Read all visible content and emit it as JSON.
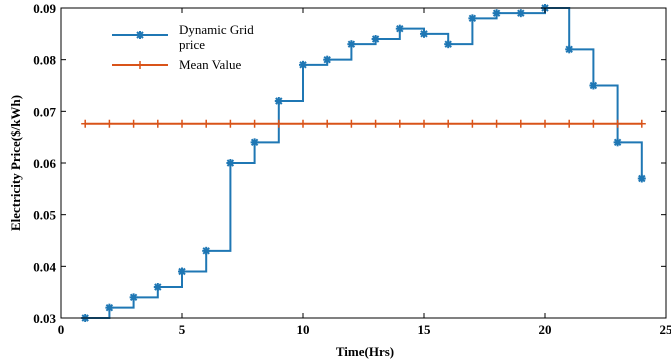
{
  "chart_data": {
    "type": "line",
    "title": "",
    "xlabel": "Time(Hrs)",
    "ylabel": "Electricity Price($/kWh)",
    "xlim": [
      0,
      25
    ],
    "ylim": [
      0.03,
      0.09
    ],
    "xticks": [
      0,
      5,
      10,
      15,
      20,
      25
    ],
    "xtick_labels": [
      "0",
      "5",
      "10",
      "15",
      "20",
      "25"
    ],
    "yticks": [
      0.03,
      0.04,
      0.05,
      0.06,
      0.07,
      0.08,
      0.09
    ],
    "ytick_labels": [
      "0.03",
      "0.04",
      "0.05",
      "0.06",
      "0.07",
      "0.08",
      "0.09"
    ],
    "grid": false,
    "legend_position": "top-left",
    "series": [
      {
        "name": "Dynamic Grid price",
        "legend_lines": [
          "Dynamic Grid",
          "price"
        ],
        "style": "step",
        "marker": "asterisk",
        "color": "#1f77b4",
        "x": [
          1,
          2,
          3,
          4,
          5,
          6,
          7,
          8,
          9,
          10,
          11,
          12,
          13,
          14,
          15,
          16,
          17,
          18,
          19,
          20,
          21,
          22,
          23,
          24
        ],
        "y": [
          0.03,
          0.032,
          0.034,
          0.036,
          0.039,
          0.043,
          0.06,
          0.064,
          0.072,
          0.079,
          0.08,
          0.083,
          0.084,
          0.086,
          0.085,
          0.083,
          0.088,
          0.089,
          0.089,
          0.09,
          0.082,
          0.075,
          0.064,
          0.057
        ]
      },
      {
        "name": "Mean Value",
        "legend_lines": [
          "Mean Value"
        ],
        "style": "line",
        "marker": "plus",
        "color": "#d95319",
        "x": [
          1,
          2,
          3,
          4,
          5,
          6,
          7,
          8,
          9,
          10,
          11,
          12,
          13,
          14,
          15,
          16,
          17,
          18,
          19,
          20,
          21,
          22,
          23,
          24
        ],
        "y": [
          0.0676,
          0.0676,
          0.0676,
          0.0676,
          0.0676,
          0.0676,
          0.0676,
          0.0676,
          0.0676,
          0.0676,
          0.0676,
          0.0676,
          0.0676,
          0.0676,
          0.0676,
          0.0676,
          0.0676,
          0.0676,
          0.0676,
          0.0676,
          0.0676,
          0.0676,
          0.0676,
          0.0676
        ]
      }
    ]
  }
}
